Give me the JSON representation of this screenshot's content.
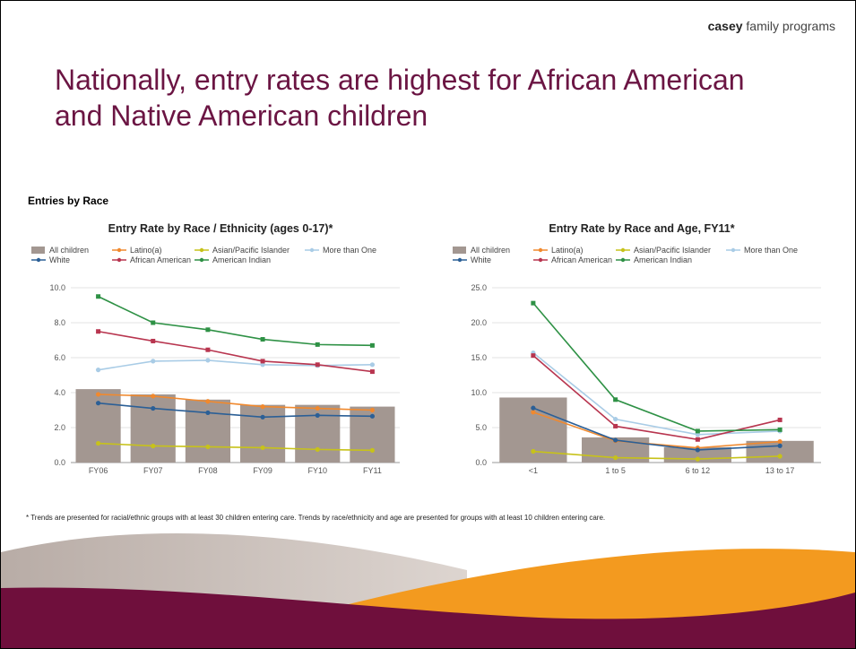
{
  "brand": {
    "bold": "casey",
    "rest": " family programs"
  },
  "slide_title": "Nationally, entry rates are highest for African American and Native American children",
  "section_label": "Entries by Race",
  "footnote": "* Trends are presented for racial/ethnic groups with at least 30 children entering care.  Trends by race/ethnicity and age are presented for groups with at least 10 children entering care.",
  "colors": {
    "all_children": "#a39791",
    "latino": "#f0892e",
    "asian": "#c7c21a",
    "more_than_one": "#a9cce6",
    "white": "#2b5f96",
    "african_american": "#b8354f",
    "american_indian": "#2e9145",
    "title": "#6b1543",
    "wave_maroon": "#6f0f3c",
    "wave_orange": "#f39a1f"
  },
  "chart_data": [
    {
      "type": "bar",
      "title": "Entry Rate by Race / Ethnicity (ages 0-17)*",
      "categories": [
        "FY06",
        "FY07",
        "FY08",
        "FY09",
        "FY10",
        "FY11"
      ],
      "ylim": [
        0,
        10
      ],
      "yticks": [
        "0.0",
        "2.0",
        "4.0",
        "6.0",
        "8.0",
        "10.0"
      ],
      "ytick_values": [
        0,
        2,
        4,
        6,
        8,
        10
      ],
      "grid": true,
      "legend": "top",
      "bars": {
        "name": "All children",
        "values": [
          4.2,
          3.9,
          3.6,
          3.3,
          3.3,
          3.2
        ]
      },
      "series": [
        {
          "name": "Latino(a)",
          "key": "latino",
          "values": [
            3.9,
            3.8,
            3.5,
            3.2,
            3.1,
            3.0
          ]
        },
        {
          "name": "Asian/Pacific Islander",
          "key": "asian",
          "values": [
            1.1,
            0.95,
            0.9,
            0.85,
            0.75,
            0.7
          ]
        },
        {
          "name": "More than One",
          "key": "more_than_one",
          "values": [
            5.3,
            5.8,
            5.85,
            5.6,
            5.55,
            5.6
          ]
        },
        {
          "name": "White",
          "key": "white",
          "values": [
            3.4,
            3.1,
            2.85,
            2.6,
            2.7,
            2.65
          ]
        },
        {
          "name": "African American",
          "key": "african_american",
          "values": [
            7.5,
            6.95,
            6.45,
            5.8,
            5.6,
            5.2
          ]
        },
        {
          "name": "American Indian",
          "key": "american_indian",
          "values": [
            9.5,
            8.0,
            7.6,
            7.05,
            6.75,
            6.7
          ]
        }
      ]
    },
    {
      "type": "bar",
      "title": "Entry Rate by Race and Age, FY11*",
      "categories": [
        "<1",
        "1 to 5",
        "6 to 12",
        "13 to 17"
      ],
      "ylim": [
        0,
        25
      ],
      "yticks": [
        "0.0",
        "5.0",
        "10.0",
        "15.0",
        "20.0",
        "25.0"
      ],
      "ytick_values": [
        0,
        5,
        10,
        15,
        20,
        25
      ],
      "grid": true,
      "legend": "top",
      "bars": {
        "name": "All children",
        "values": [
          9.3,
          3.6,
          2.2,
          3.1
        ]
      },
      "series": [
        {
          "name": "Latino(a)",
          "key": "latino",
          "values": [
            7.2,
            3.1,
            2.1,
            3.0
          ]
        },
        {
          "name": "Asian/Pacific Islander",
          "key": "asian",
          "values": [
            1.6,
            0.7,
            0.5,
            0.9
          ]
        },
        {
          "name": "More than One",
          "key": "more_than_one",
          "values": [
            15.7,
            6.2,
            4.0,
            4.5
          ]
        },
        {
          "name": "White",
          "key": "white",
          "values": [
            7.8,
            3.2,
            1.8,
            2.4
          ]
        },
        {
          "name": "African American",
          "key": "african_american",
          "values": [
            15.3,
            5.2,
            3.3,
            6.1
          ]
        },
        {
          "name": "American Indian",
          "key": "american_indian",
          "values": [
            22.8,
            9.0,
            4.5,
            4.7
          ]
        }
      ]
    }
  ]
}
